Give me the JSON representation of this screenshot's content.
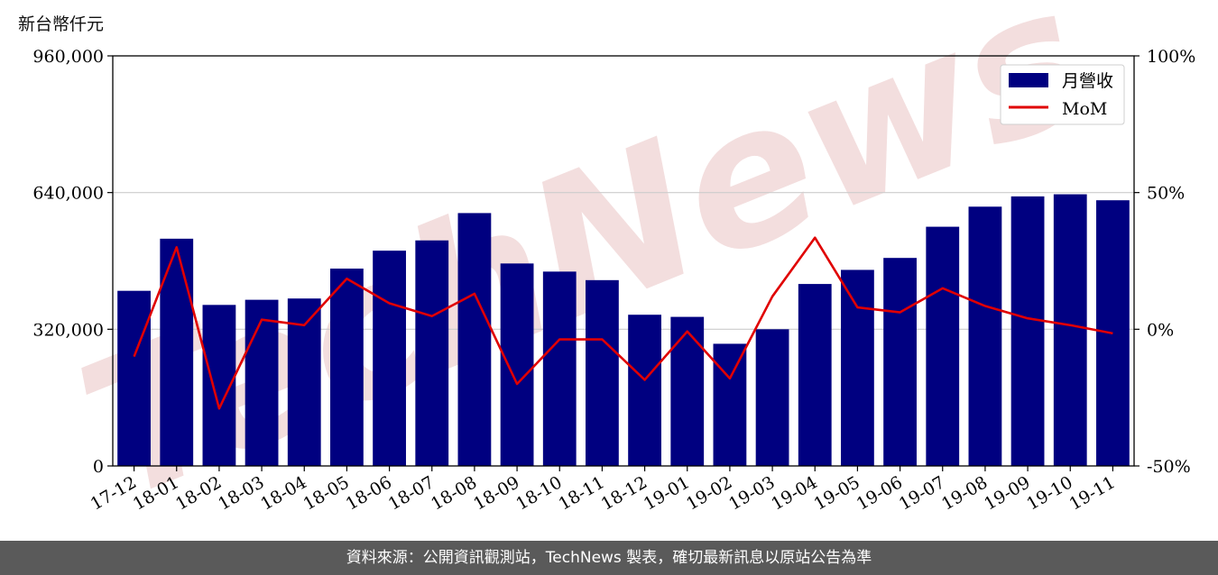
{
  "unit_label": "新台幣仟元",
  "watermark_text": "TechNews",
  "footer_text": "資料來源：公開資訊觀測站，TechNews 製表，確切最新訊息以原站公告為準",
  "colors": {
    "bar": "#000080",
    "line": "#e00000",
    "grid": "#cccccc",
    "footer_bg": "#5a5a5a",
    "watermark": "#f3dede"
  },
  "chart_data": {
    "type": "bar",
    "categories": [
      "17-12",
      "18-01",
      "18-02",
      "18-03",
      "18-04",
      "18-05",
      "18-06",
      "18-07",
      "18-08",
      "18-09",
      "18-10",
      "18-11",
      "18-12",
      "19-01",
      "19-02",
      "19-03",
      "19-04",
      "19-05",
      "19-06",
      "19-07",
      "19-08",
      "19-09",
      "19-10",
      "19-11"
    ],
    "series": [
      {
        "name": "月營收",
        "type": "bar",
        "axis": "left",
        "values": [
          410000,
          532000,
          377000,
          389000,
          392000,
          462000,
          504000,
          528000,
          592000,
          474000,
          455000,
          435000,
          354000,
          349000,
          286000,
          320000,
          426000,
          459000,
          487000,
          560000,
          607000,
          631000,
          636000,
          622000
        ]
      },
      {
        "name": "MoM",
        "type": "line",
        "axis": "right",
        "values": [
          -10,
          30,
          -29,
          3.5,
          1.5,
          18.5,
          9.5,
          4.8,
          13,
          -20,
          -3.7,
          -3.7,
          -18.5,
          -0.8,
          -18,
          12,
          33.5,
          8,
          6.2,
          15,
          8.5,
          4,
          1.5,
          -1.5
        ]
      }
    ],
    "y_left": {
      "lim": [
        0,
        960000
      ],
      "ticks": [
        "0",
        "320,000",
        "640,000",
        "960,000"
      ],
      "tick_values": [
        0,
        320000,
        640000,
        960000
      ]
    },
    "y_right": {
      "lim": [
        -50,
        100
      ],
      "ticks": [
        "-50%",
        "0%",
        "50%",
        "100%"
      ],
      "tick_values": [
        -50,
        0,
        50,
        100
      ]
    },
    "grid": "horizontal",
    "legend_position": "top-right"
  }
}
